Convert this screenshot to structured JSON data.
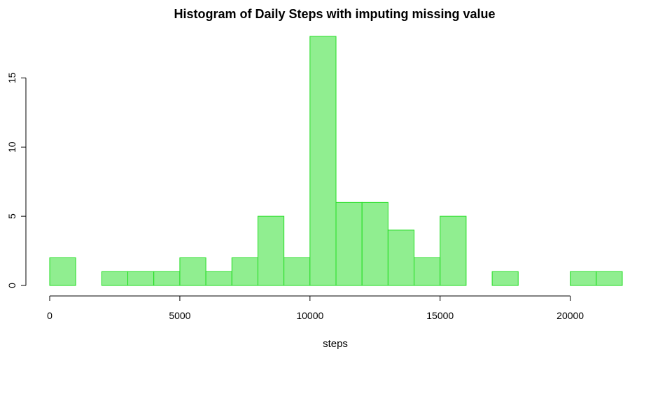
{
  "chart_data": {
    "type": "bar",
    "title": "Histogram of Daily Steps with imputing missing value",
    "xlabel": "steps",
    "ylabel": "",
    "bin_width": 1000,
    "bins": [
      {
        "start": 0,
        "end": 1000,
        "count": 2
      },
      {
        "start": 1000,
        "end": 2000,
        "count": 0
      },
      {
        "start": 2000,
        "end": 3000,
        "count": 1
      },
      {
        "start": 3000,
        "end": 4000,
        "count": 1
      },
      {
        "start": 4000,
        "end": 5000,
        "count": 1
      },
      {
        "start": 5000,
        "end": 6000,
        "count": 2
      },
      {
        "start": 6000,
        "end": 7000,
        "count": 1
      },
      {
        "start": 7000,
        "end": 8000,
        "count": 2
      },
      {
        "start": 8000,
        "end": 9000,
        "count": 5
      },
      {
        "start": 9000,
        "end": 10000,
        "count": 2
      },
      {
        "start": 10000,
        "end": 11000,
        "count": 18
      },
      {
        "start": 11000,
        "end": 12000,
        "count": 6
      },
      {
        "start": 12000,
        "end": 13000,
        "count": 6
      },
      {
        "start": 13000,
        "end": 14000,
        "count": 4
      },
      {
        "start": 14000,
        "end": 15000,
        "count": 2
      },
      {
        "start": 15000,
        "end": 16000,
        "count": 5
      },
      {
        "start": 16000,
        "end": 17000,
        "count": 0
      },
      {
        "start": 17000,
        "end": 18000,
        "count": 1
      },
      {
        "start": 18000,
        "end": 19000,
        "count": 0
      },
      {
        "start": 19000,
        "end": 20000,
        "count": 0
      },
      {
        "start": 20000,
        "end": 21000,
        "count": 1
      },
      {
        "start": 21000,
        "end": 22000,
        "count": 1
      }
    ],
    "x_ticks": [
      0,
      5000,
      10000,
      15000,
      20000
    ],
    "y_ticks": [
      0,
      5,
      10,
      15
    ],
    "xlim": [
      0,
      22000
    ],
    "ylim": [
      0,
      18
    ],
    "grid": false,
    "legend": "none",
    "bar_fill": "#90EE90",
    "bar_stroke": "#22DD22"
  }
}
